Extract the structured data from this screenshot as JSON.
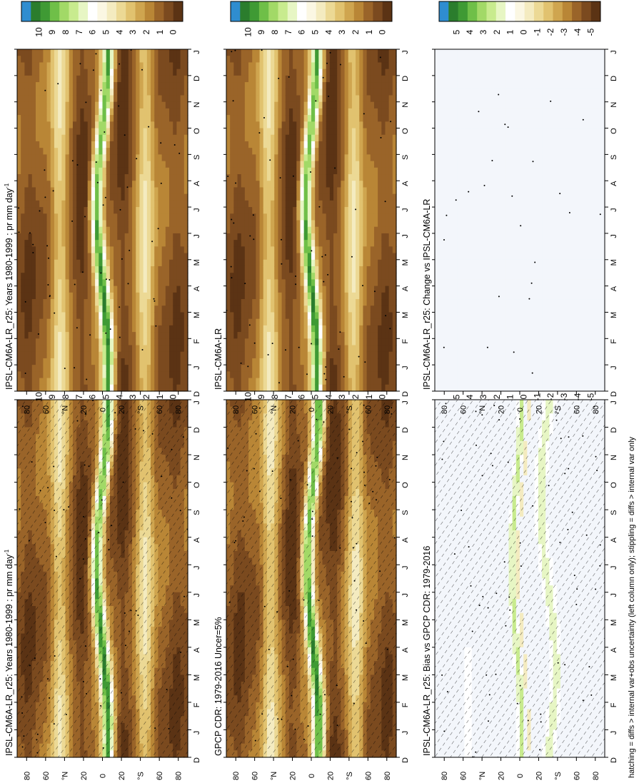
{
  "figure": {
    "footer_note": "hatching = diffs > internal var+obs uncertainty (left column only); stippling = diffs > internal var only",
    "palettes": {
      "precip": [
        "#5b3314",
        "#7b4a1f",
        "#9a6429",
        "#b98636",
        "#cfa54f",
        "#e1c26f",
        "#ecd995",
        "#f4ebc0",
        "#fbf7e3",
        "#ffffff",
        "#e7f6c4",
        "#c8eb8e",
        "#a2d967",
        "#6fbf48",
        "#3f9a34",
        "#2b7d2d",
        "#2f8dd0"
      ],
      "diff": [
        "#5b3314",
        "#7b4a1f",
        "#9a6429",
        "#b98636",
        "#cfa54f",
        "#e1c26f",
        "#ecd995",
        "#f4ebc0",
        "#fbf7e3",
        "#ffffff",
        "#e7f6c4",
        "#c8eb8e",
        "#a2d967",
        "#6fbf48",
        "#3f9a34",
        "#2b7d2d",
        "#2f8dd0"
      ]
    }
  },
  "chart_data": [
    {
      "type": "heatmap",
      "title": "IPSL-CM6A-LR_r25: Years 1980-1999 : pr mm day",
      "title_superscript": "-1",
      "x": [
        "D",
        "J",
        "F",
        "M",
        "A",
        "M",
        "J",
        "J",
        "A",
        "S",
        "O",
        "N",
        "D",
        "J"
      ],
      "y_ticks_north": [
        "80",
        "60",
        "°N",
        "20"
      ],
      "y_ticks_center": "0",
      "y_ticks_south": [
        "20",
        "°S",
        "60",
        "80"
      ],
      "colorbar_ticks": [
        "10",
        "9",
        "8",
        "7",
        "6",
        "5",
        "4",
        "3",
        "2",
        "1",
        "0"
      ],
      "zlim": [
        0,
        10
      ],
      "hatching": true,
      "stippling": true
    },
    {
      "type": "heatmap",
      "title": "IPSL-CM6A-LR_r25: Years 1980-1999 : pr mm day",
      "title_superscript": "-1",
      "x": [
        "D",
        "J",
        "F",
        "M",
        "A",
        "M",
        "J",
        "J",
        "A",
        "S",
        "O",
        "N",
        "D",
        "J"
      ],
      "y_ticks_north": [
        "80",
        "60",
        "°N",
        "20"
      ],
      "y_ticks_center": "0",
      "y_ticks_south": [
        "20",
        "°S",
        "60",
        "80"
      ],
      "colorbar_ticks": [
        "10",
        "9",
        "8",
        "7",
        "6",
        "5",
        "4",
        "3",
        "2",
        "1",
        "0"
      ],
      "zlim": [
        0,
        10
      ],
      "hatching": false,
      "stippling": true
    },
    {
      "type": "heatmap",
      "title": "GPCP CDR: 1979-2016 Uncer=5%",
      "title_superscript": "",
      "x": [
        "D",
        "J",
        "F",
        "M",
        "A",
        "M",
        "J",
        "J",
        "A",
        "S",
        "O",
        "N",
        "D",
        "J"
      ],
      "y_ticks_north": [
        "80",
        "60",
        "°N",
        "20"
      ],
      "y_ticks_center": "0",
      "y_ticks_south": [
        "20",
        "°S",
        "60",
        "80"
      ],
      "colorbar_ticks": [
        "10",
        "9",
        "8",
        "7",
        "6",
        "5",
        "4",
        "3",
        "2",
        "1",
        "0"
      ],
      "zlim": [
        0,
        10
      ],
      "hatching": true,
      "stippling": true
    },
    {
      "type": "heatmap",
      "title": "IPSL-CM6A-LR",
      "title_superscript": "",
      "x": [
        "D",
        "J",
        "F",
        "M",
        "A",
        "M",
        "J",
        "J",
        "A",
        "S",
        "O",
        "N",
        "D",
        "J"
      ],
      "y_ticks_north": [
        "80",
        "60",
        "°N",
        "20"
      ],
      "y_ticks_center": "0",
      "y_ticks_south": [
        "20",
        "°S",
        "60",
        "80"
      ],
      "colorbar_ticks": [
        "10",
        "9",
        "8",
        "7",
        "6",
        "5",
        "4",
        "3",
        "2",
        "1",
        "0"
      ],
      "zlim": [
        0,
        10
      ],
      "hatching": false,
      "stippling": true
    },
    {
      "type": "heatmap",
      "title": "IPSL-CM6A-LR_r25: Bias vs GPCP CDR: 1979-2016",
      "title_superscript": "",
      "x": [
        "D",
        "J",
        "F",
        "M",
        "A",
        "M",
        "J",
        "J",
        "A",
        "S",
        "O",
        "N",
        "D",
        "J"
      ],
      "y_ticks_north": [
        "80",
        "60",
        "°N",
        "20"
      ],
      "y_ticks_center": "0",
      "y_ticks_south": [
        "20",
        "°S",
        "60",
        "80"
      ],
      "colorbar_ticks": [
        "5",
        "4",
        "3",
        "2",
        "1",
        "0",
        "-1",
        "-2",
        "-3",
        "-4",
        "-5"
      ],
      "zlim": [
        -5,
        5
      ],
      "hatching": true,
      "stippling": true
    },
    {
      "type": "heatmap",
      "title": "IPSL-CM6A-LR_r25: Change vs IPSL-CM6A-LR",
      "title_superscript": "",
      "x": [
        "D",
        "J",
        "F",
        "M",
        "A",
        "M",
        "J",
        "J",
        "A",
        "S",
        "O",
        "N",
        "D",
        "J"
      ],
      "y_ticks_north": [
        "80",
        "60",
        "°N",
        "20"
      ],
      "y_ticks_center": "0",
      "y_ticks_south": [
        "20",
        "°S",
        "60",
        "80"
      ],
      "colorbar_ticks": [
        "5",
        "4",
        "3",
        "2",
        "1",
        "0",
        "-1",
        "-2",
        "-3",
        "-4",
        "-5"
      ],
      "zlim": [
        -5,
        5
      ],
      "hatching": false,
      "stippling": true
    }
  ]
}
